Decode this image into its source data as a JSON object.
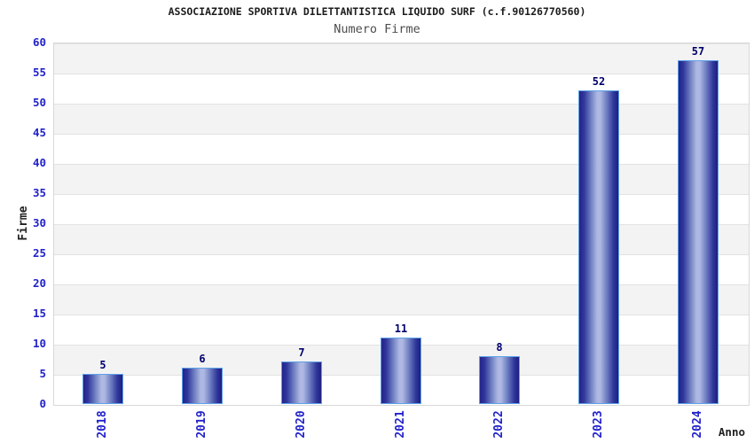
{
  "chart_data": {
    "type": "bar",
    "title": "ASSOCIAZIONE SPORTIVA DILETTANTISTICA LIQUIDO SURF (c.f.90126770560)",
    "subtitle": "Numero Firme",
    "categories": [
      "2018",
      "2019",
      "2020",
      "2021",
      "2022",
      "2023",
      "2024"
    ],
    "values": [
      5,
      6,
      7,
      11,
      8,
      52,
      57
    ],
    "xlabel": "Anno",
    "ylabel": "Firme",
    "ylim": [
      0,
      60
    ],
    "ytick_step": 5,
    "yticks": [
      0,
      5,
      10,
      15,
      20,
      25,
      30,
      35,
      40,
      45,
      50,
      55,
      60
    ],
    "grid": "horizontal-bands-alternating",
    "legend_position": "none",
    "bar_value_labels": [
      "5",
      "6",
      "7",
      "11",
      "8",
      "52",
      "57"
    ]
  },
  "colors": {
    "tick_label": "#2222cc",
    "value_label": "#00006e",
    "bar_border": "#5da0e8",
    "bar_dark": "#23238c",
    "bar_highlight": "#aeb8e2",
    "band_gray": "#f3f3f3",
    "grid_line": "#e2e2e2",
    "plot_border": "#d8d8d8",
    "title_color": "#1c1c1c",
    "subtitle_color": "#4d4d4d",
    "axis_label_color": "#222222",
    "background": "#ffffff"
  }
}
